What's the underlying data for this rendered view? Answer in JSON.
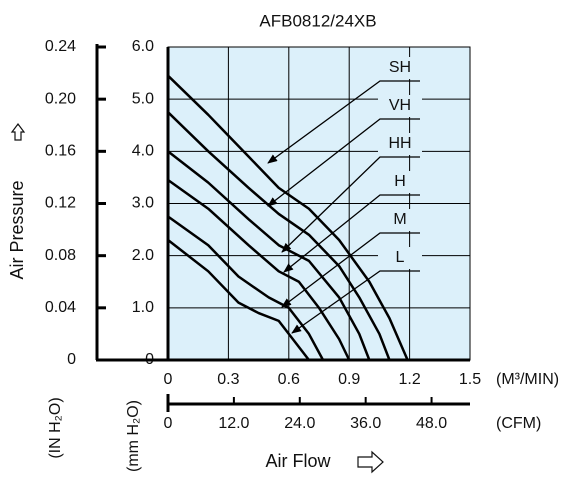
{
  "chart_data": {
    "type": "line",
    "title": "AFB0812/24XB",
    "x_label": "Air Flow",
    "y_label": "Air Pressure",
    "x_unit": "(M³/MIN)",
    "x2_unit": "(CFM)",
    "y_unit": "(mm H₂O)",
    "y2_unit": "(IN H₂O)",
    "xlim": [
      0,
      1.5
    ],
    "xticks": [
      0,
      0.3,
      0.6,
      0.9,
      1.2,
      1.5
    ],
    "x2lim": [
      0,
      55
    ],
    "x2ticks": [
      0,
      {
        "value": 12,
        "label": "12.0"
      },
      {
        "value": 24,
        "label": "24.0"
      },
      {
        "value": 36,
        "label": "36.0"
      },
      {
        "value": 48,
        "label": "48.0"
      }
    ],
    "ylim": [
      0,
      6
    ],
    "yticks": [
      0,
      {
        "value": 1,
        "label": "1.0"
      },
      {
        "value": 2,
        "label": "2.0"
      },
      {
        "value": 3,
        "label": "3.0"
      },
      {
        "value": 4,
        "label": "4.0"
      },
      {
        "value": 5,
        "label": "5.0"
      },
      {
        "value": 6,
        "label": "6.0"
      }
    ],
    "y2lim": [
      0,
      0.24
    ],
    "y2ticks": [
      0,
      0.04,
      0.08,
      0.12,
      0.16,
      {
        "value": 0.2,
        "label": "0.20"
      },
      0.24
    ],
    "grid": true,
    "background": "#dcf0fa",
    "series": [
      {
        "name": "SH",
        "color": "#000000",
        "x": [
          0,
          0.2,
          0.4,
          0.55,
          0.7,
          0.85,
          1.0,
          1.1,
          1.19
        ],
        "values": [
          5.45,
          4.7,
          3.9,
          3.3,
          2.9,
          2.3,
          1.5,
          0.8,
          0
        ]
      },
      {
        "name": "VH",
        "color": "#000000",
        "x": [
          0,
          0.2,
          0.4,
          0.55,
          0.7,
          0.85,
          0.95,
          1.05,
          1.1
        ],
        "values": [
          4.75,
          4.0,
          3.3,
          2.8,
          2.4,
          1.8,
          1.2,
          0.5,
          0
        ]
      },
      {
        "name": "HH",
        "color": "#000000",
        "x": [
          0,
          0.2,
          0.4,
          0.55,
          0.7,
          0.85,
          0.95,
          1.0
        ],
        "values": [
          4.0,
          3.4,
          2.7,
          2.2,
          1.9,
          1.2,
          0.5,
          0
        ]
      },
      {
        "name": "H",
        "color": "#000000",
        "x": [
          0,
          0.2,
          0.4,
          0.55,
          0.65,
          0.75,
          0.85,
          0.9
        ],
        "values": [
          3.45,
          2.9,
          2.2,
          1.7,
          1.5,
          1.0,
          0.4,
          0
        ]
      },
      {
        "name": "M",
        "color": "#000000",
        "x": [
          0,
          0.2,
          0.35,
          0.5,
          0.6,
          0.7,
          0.77
        ],
        "values": [
          2.75,
          2.2,
          1.6,
          1.2,
          1.0,
          0.5,
          0
        ]
      },
      {
        "name": "L",
        "color": "#000000",
        "x": [
          0,
          0.2,
          0.35,
          0.45,
          0.55,
          0.62,
          0.7
        ],
        "values": [
          2.3,
          1.7,
          1.1,
          0.9,
          0.75,
          0.4,
          0
        ]
      }
    ]
  }
}
